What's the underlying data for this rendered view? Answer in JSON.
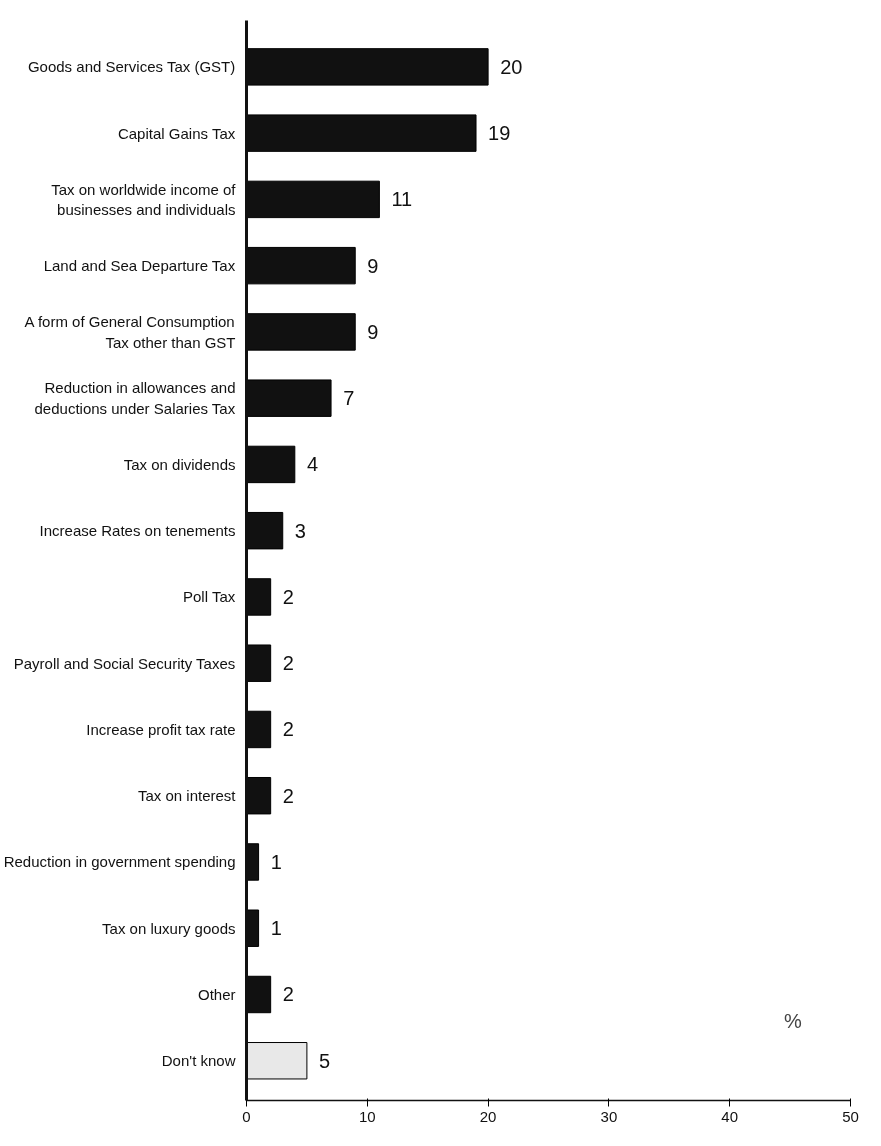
{
  "chart_data": {
    "type": "bar",
    "orientation": "horizontal",
    "categories": [
      "Goods and Services Tax (GST)",
      "Capital Gains Tax",
      "Tax on worldwide income of\nbusinesses and individuals",
      "Land and Sea Departure Tax",
      "A form of General Consumption\nTax other than GST",
      "Reduction in allowances and\ndeductions under Salaries Tax",
      "Tax on dividends",
      "Increase Rates on tenements",
      "Poll Tax",
      "Payroll and Social Security Taxes",
      "Increase profit tax rate",
      "Tax on interest",
      "Reduction in government spending",
      "Tax on luxury goods",
      "Other",
      "Don't know"
    ],
    "values": [
      20,
      19,
      11,
      9,
      9,
      7,
      4,
      3,
      2,
      2,
      2,
      2,
      1,
      1,
      2,
      5
    ],
    "colors": [
      "#111111",
      "#111111",
      "#111111",
      "#111111",
      "#111111",
      "#111111",
      "#111111",
      "#111111",
      "#111111",
      "#111111",
      "#111111",
      "#111111",
      "#111111",
      "#111111",
      "#111111",
      "#e8e8e8"
    ],
    "data_labels": true,
    "xlim": [
      0,
      50
    ],
    "xticks": [
      0,
      10,
      20,
      30,
      40,
      50
    ],
    "grid": false,
    "annotations": [
      "%"
    ]
  }
}
